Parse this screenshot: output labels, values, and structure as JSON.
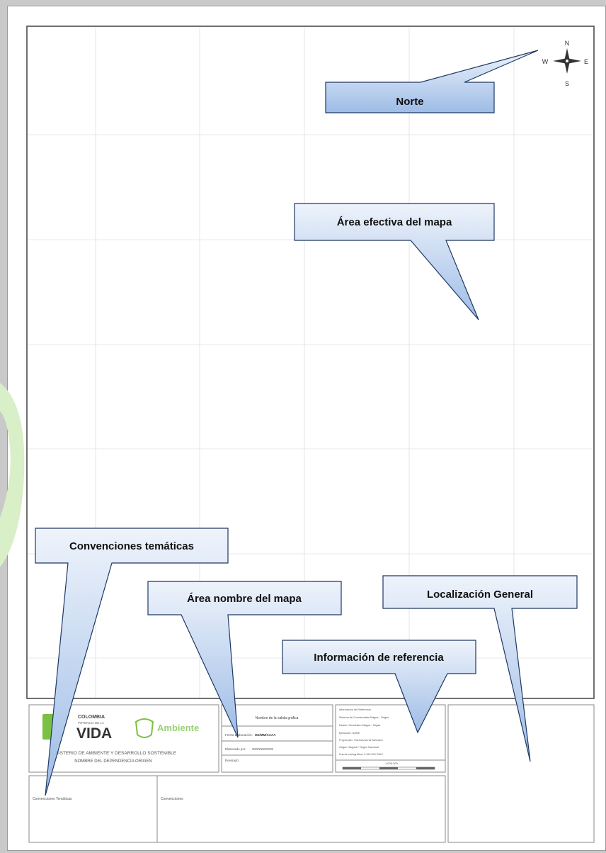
{
  "callouts": {
    "norte": "Norte",
    "area_efectiva": "Área efectiva del mapa",
    "convenciones": "Convenciones temáticas",
    "area_nombre": "Área nombre del mapa",
    "localizacion": "Localización General",
    "informacion": "Información de referencia"
  },
  "compass": {
    "n": "N",
    "s": "S",
    "e": "E",
    "w": "W"
  },
  "title_block": {
    "logo_colombia_line1": "COLOMBIA",
    "logo_colombia_line2": "POTENCIA DE LA",
    "logo_vida": "VIDA",
    "logo_ambiente": "Ambiente",
    "ministry_line1": "MINISTERIO DE AMBIENTE Y DESARROLLO SOSTENIBLE",
    "ministry_line2": "NOMBRE DEL DEPENDENCIA ORIGEN",
    "map_name": "Nombre de la salida gráfica",
    "fecha_label": "Fecha Elaboración:",
    "fecha_value": "DD/MM/AAAA",
    "elaborado_label": "Elaborado por:",
    "elaborado_value": "XXXXXXXXXX",
    "revisado_label": "Revisado:",
    "ref_title": "Información de Referencia:",
    "ref_line1": "Sistema de Coordenadas Magna - Origen",
    "ref_line2": "Datum: Geodésico Magna - Sirgas",
    "ref_line3": "Ejecución: DANE",
    "ref_line4": "Proyección: Transversal de Mercator",
    "ref_line5": "Origen: Bogotá / Origen Nacional",
    "ref_line6": "Fuente cartográfica: 1:100.000 IGAC",
    "scale_text": "1:000.000",
    "conv_tematicas_label": "Convenciones Temáticas",
    "conv_label": "Convenciones"
  },
  "colors": {
    "callout_fill_top": "#eef3fb",
    "callout_fill_bottom": "#9dbce6",
    "callout_border": "#1f3864",
    "logo_green": "#7ac143",
    "sheet_border": "#9a9a9a"
  }
}
